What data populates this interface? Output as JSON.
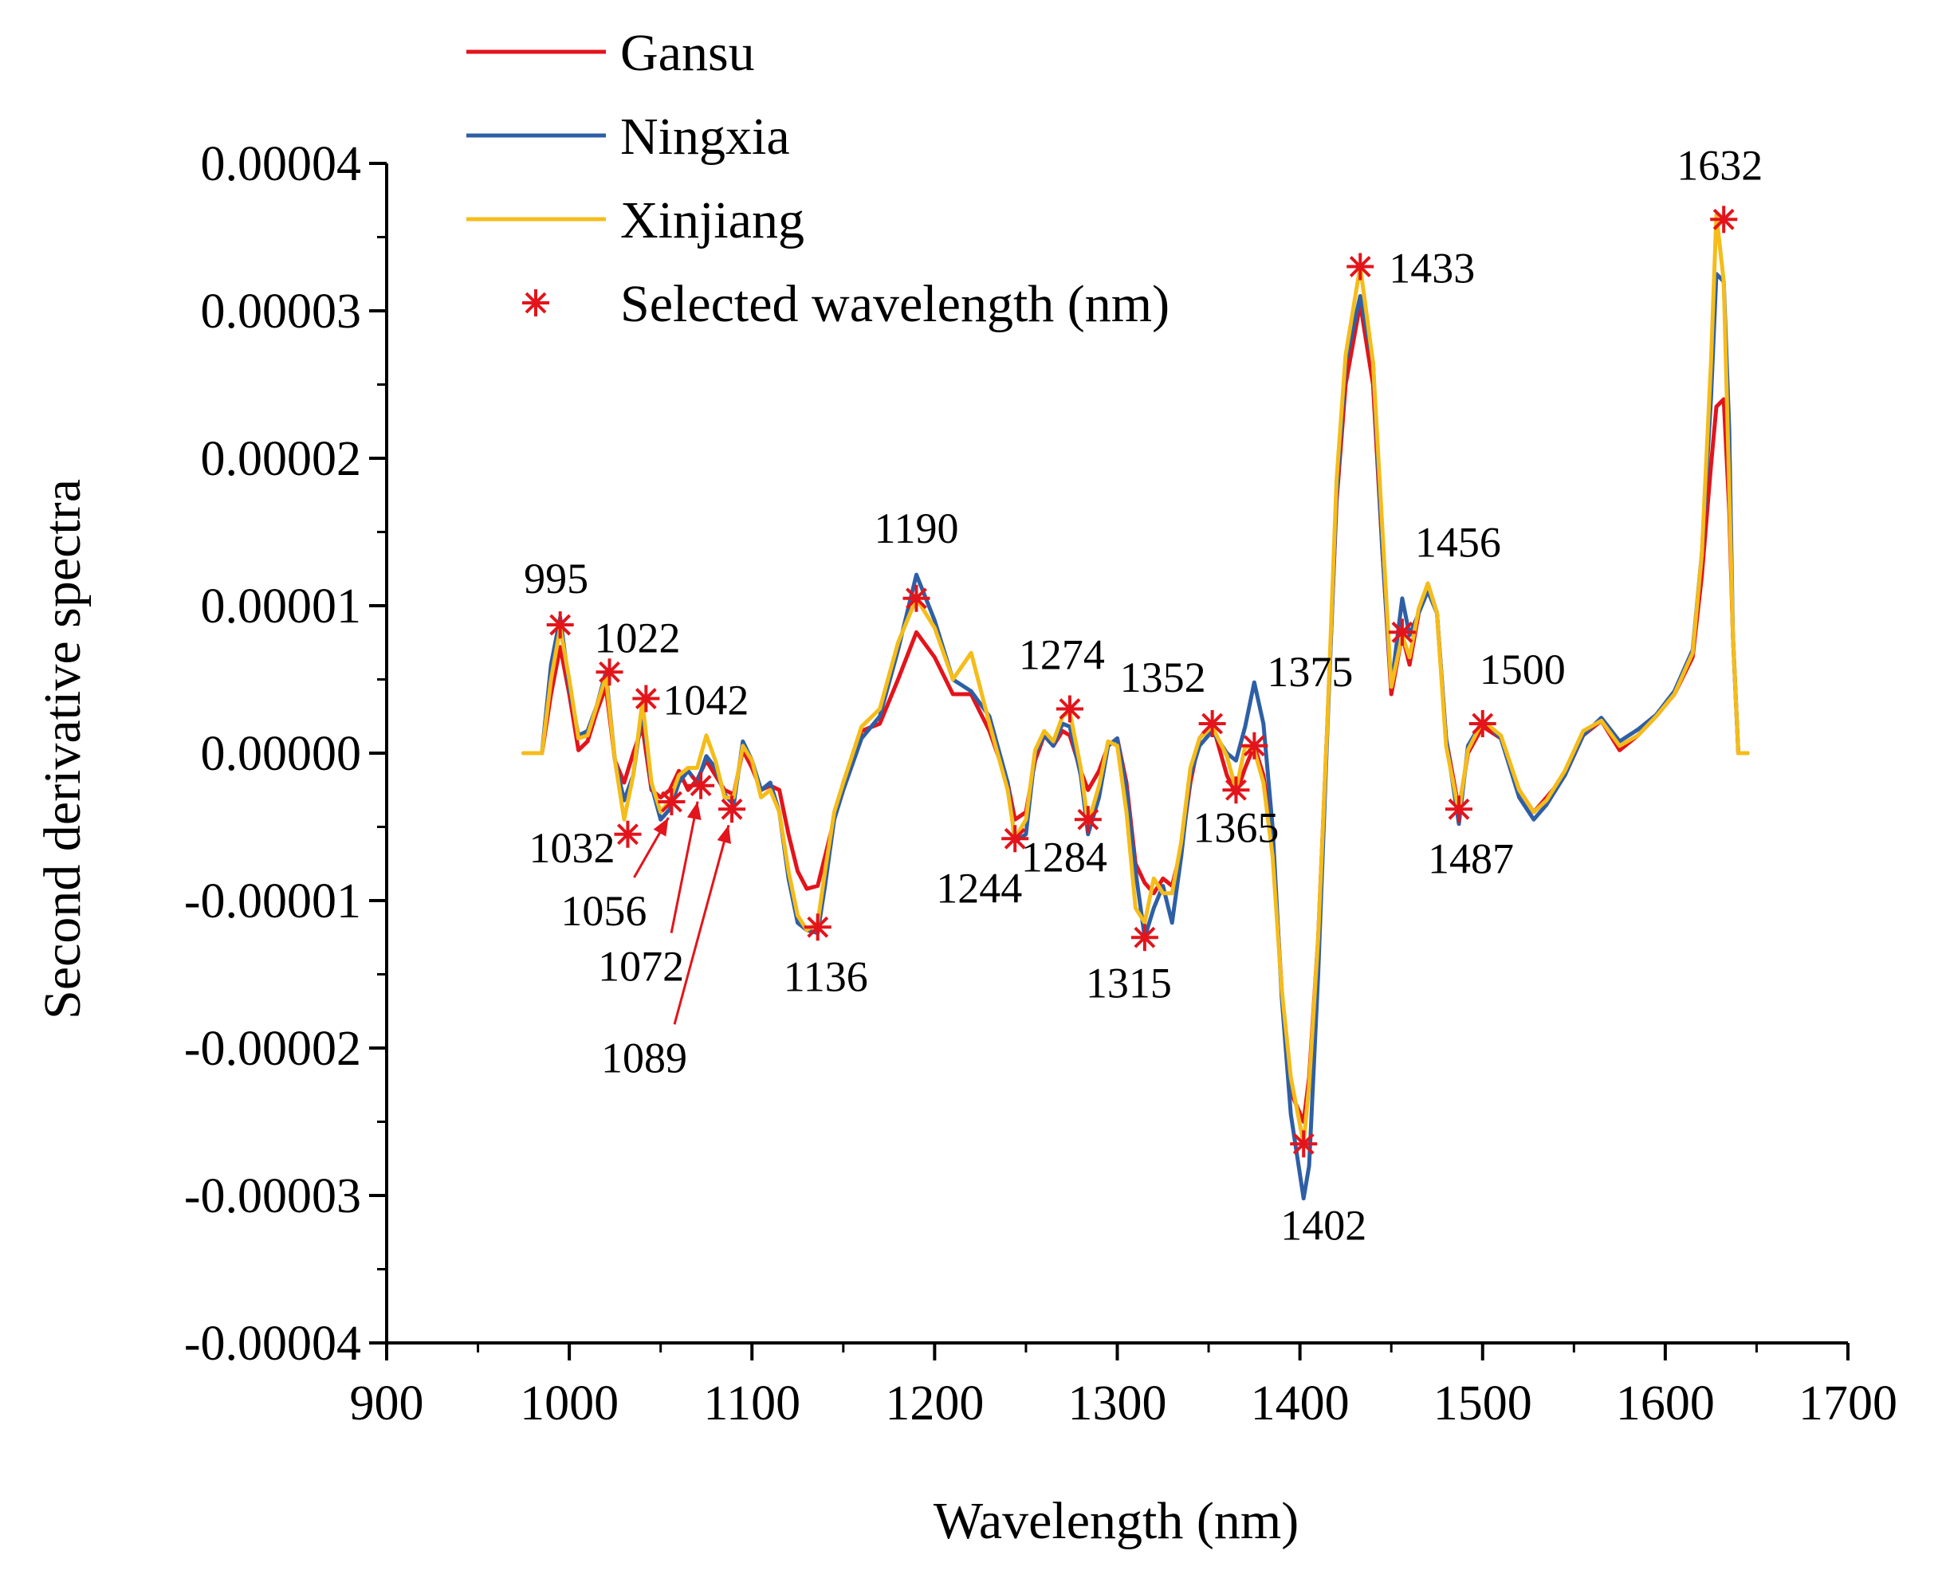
{
  "chart_data": {
    "type": "line",
    "xlabel": "Wavelength (nm)",
    "ylabel": "Second derivative spectra",
    "xlim": [
      900,
      1700
    ],
    "ylim": [
      -4e-05,
      4e-05
    ],
    "xticks": [
      900,
      1000,
      1100,
      1200,
      1300,
      1400,
      1500,
      1600,
      1700
    ],
    "xtick_labels": [
      "900",
      "1000",
      "1100",
      "1200",
      "1300",
      "1400",
      "1500",
      "1600",
      "1700"
    ],
    "yticks": [
      -4e-05,
      -3e-05,
      -2e-05,
      -1e-05,
      0,
      1e-05,
      2e-05,
      3e-05,
      4e-05
    ],
    "ytick_labels": [
      "-0.00004",
      "-0.00003",
      "-0.00002",
      "-0.00001",
      "0.00000",
      "0.00001",
      "0.00002",
      "0.00003",
      "0.00004"
    ],
    "legend_position": "top-left",
    "series": [
      {
        "name": "Gansu",
        "color": "#e3141b",
        "x": [
          975,
          985,
          990,
          995,
          1000,
          1005,
          1010,
          1015,
          1020,
          1025,
          1030,
          1035,
          1040,
          1045,
          1050,
          1055,
          1060,
          1065,
          1070,
          1075,
          1080,
          1085,
          1090,
          1095,
          1100,
          1105,
          1110,
          1115,
          1120,
          1125,
          1130,
          1136,
          1140,
          1145,
          1150,
          1160,
          1170,
          1180,
          1190,
          1200,
          1210,
          1220,
          1230,
          1240,
          1244,
          1250,
          1255,
          1260,
          1265,
          1270,
          1274,
          1280,
          1284,
          1290,
          1295,
          1300,
          1305,
          1310,
          1315,
          1320,
          1325,
          1330,
          1335,
          1340,
          1345,
          1352,
          1360,
          1365,
          1370,
          1375,
          1380,
          1385,
          1390,
          1395,
          1402,
          1405,
          1410,
          1415,
          1420,
          1425,
          1433,
          1440,
          1445,
          1450,
          1456,
          1460,
          1465,
          1470,
          1475,
          1480,
          1487,
          1492,
          1500,
          1510,
          1520,
          1528,
          1535,
          1545,
          1555,
          1565,
          1575,
          1585,
          1595,
          1605,
          1615,
          1620,
          1625,
          1628,
          1632,
          1635,
          1637,
          1640,
          1645
        ],
        "y": [
          0,
          0,
          4e-06,
          7.2e-06,
          4e-06,
          2e-07,
          8e-07,
          2.8e-06,
          4.5e-06,
          -5e-07,
          -2e-06,
          0,
          1.8e-06,
          -2.5e-06,
          -3e-06,
          -2.5e-06,
          -1.2e-06,
          -2.5e-06,
          -1.8e-06,
          -5e-07,
          -1.5e-06,
          -2.5e-06,
          -2.8e-06,
          2e-07,
          -1e-06,
          -2.5e-06,
          -2.2e-06,
          -2.5e-06,
          -5.5e-06,
          -8e-06,
          -9.2e-06,
          -9e-06,
          -7e-06,
          -4.5e-06,
          -2e-06,
          1.5e-06,
          2e-06,
          5e-06,
          8.2e-06,
          6.5e-06,
          4e-06,
          4e-06,
          1.5e-06,
          -2e-06,
          -4.5e-06,
          -4e-06,
          -5e-07,
          1.2e-06,
          5e-07,
          1.5e-06,
          1.2e-06,
          -1.2e-06,
          -2.5e-06,
          -1.2e-06,
          5e-07,
          1e-06,
          -2e-06,
          -7.5e-06,
          -8.8e-06,
          -9.5e-06,
          -8.5e-06,
          -9e-06,
          -6.5e-06,
          -2e-06,
          1e-06,
          2e-06,
          -1.5e-06,
          -2.8e-06,
          -1e-06,
          5e-07,
          -1.5e-06,
          -6e-06,
          -1.6e-05,
          -2.3e-05,
          -2.5e-05,
          -2.2e-05,
          -1.25e-05,
          2e-06,
          1.7e-05,
          2.5e-05,
          3.05e-05,
          2.5e-05,
          1.4e-05,
          4e-06,
          8e-06,
          6e-06,
          9.5e-06,
          1.15e-05,
          9.5e-06,
          1e-06,
          -3.8e-06,
          0,
          1.8e-06,
          1e-06,
          -2.5e-06,
          -4e-06,
          -3e-06,
          -1.5e-06,
          1.2e-06,
          2.2e-06,
          2e-07,
          1.2e-06,
          2.5e-06,
          4e-06,
          6.5e-06,
          1.2e-05,
          1.95e-05,
          2.35e-05,
          2.4e-05,
          1.65e-05,
          8e-06,
          0,
          0
        ],
        "y_last_index_note": ""
      },
      {
        "name": "Ningxia",
        "color": "#2e5fa6",
        "x": [
          975,
          985,
          990,
          995,
          1000,
          1005,
          1010,
          1015,
          1020,
          1025,
          1030,
          1035,
          1040,
          1045,
          1050,
          1055,
          1060,
          1065,
          1070,
          1075,
          1080,
          1085,
          1090,
          1095,
          1100,
          1105,
          1110,
          1115,
          1120,
          1125,
          1130,
          1136,
          1140,
          1145,
          1150,
          1160,
          1170,
          1180,
          1190,
          1200,
          1210,
          1220,
          1230,
          1240,
          1244,
          1250,
          1255,
          1260,
          1265,
          1270,
          1274,
          1280,
          1284,
          1290,
          1295,
          1300,
          1305,
          1310,
          1315,
          1320,
          1325,
          1330,
          1335,
          1340,
          1345,
          1352,
          1360,
          1365,
          1370,
          1375,
          1380,
          1385,
          1390,
          1395,
          1402,
          1405,
          1410,
          1415,
          1420,
          1425,
          1433,
          1440,
          1445,
          1450,
          1456,
          1460,
          1465,
          1470,
          1475,
          1480,
          1487,
          1492,
          1500,
          1510,
          1520,
          1528,
          1535,
          1545,
          1555,
          1565,
          1575,
          1585,
          1595,
          1605,
          1615,
          1620,
          1625,
          1628,
          1632,
          1635,
          1637,
          1640,
          1645
        ],
        "y": [
          0,
          0,
          6e-06,
          9.2e-06,
          4.5e-06,
          1.2e-06,
          1.5e-06,
          3.2e-06,
          5.5e-06,
          -5e-07,
          -3.2e-06,
          -1.5e-06,
          3e-06,
          -2.2e-06,
          -4.5e-06,
          -3.8e-06,
          -2e-06,
          -1.2e-06,
          -2e-06,
          -2e-07,
          -1e-06,
          -2.8e-06,
          -3.5e-06,
          8e-07,
          -5e-07,
          -2.5e-06,
          -2e-06,
          -4e-06,
          -8.5e-06,
          -1.15e-05,
          -1.2e-05,
          -1.22e-05,
          -9e-06,
          -4.5e-06,
          -2.5e-06,
          1e-06,
          2.5e-06,
          7e-06,
          1.21e-05,
          9e-06,
          5e-06,
          4.2e-06,
          2.5e-06,
          -2e-06,
          -6e-06,
          -5.5e-06,
          0,
          1.2e-06,
          5e-07,
          2e-06,
          1.8e-06,
          -1.5e-06,
          -5.5e-06,
          -3e-06,
          5e-07,
          1e-06,
          -2.5e-06,
          -8e-06,
          -1.25e-05,
          -1.05e-05,
          -9e-06,
          -1.15e-05,
          -7e-06,
          -1.5e-06,
          5e-07,
          1.5e-06,
          0,
          -5e-07,
          1.8e-06,
          4.8e-06,
          2e-06,
          -5e-06,
          -1.65e-05,
          -2.45e-05,
          -3.02e-05,
          -2.8e-05,
          -1.5e-05,
          1.5e-06,
          1.75e-05,
          2.65e-05,
          3.1e-05,
          2.65e-05,
          1.4e-05,
          4.5e-06,
          1.05e-05,
          8e-06,
          9.5e-06,
          1.1e-05,
          9.5e-06,
          1e-06,
          -4.8e-06,
          5e-07,
          2.2e-06,
          1e-06,
          -3e-06,
          -4.5e-06,
          -3.5e-06,
          -1.5e-06,
          1.2e-06,
          2.4e-06,
          8e-07,
          1.6e-06,
          2.6e-06,
          4.2e-06,
          7e-06,
          1.35e-05,
          2.4e-05,
          3.25e-05,
          3.2e-05,
          2.2e-05,
          8e-06,
          0,
          0
        ]
      },
      {
        "name": "Xinjiang",
        "color": "#f5bc1a",
        "x": [
          975,
          985,
          990,
          995,
          1000,
          1005,
          1010,
          1015,
          1020,
          1025,
          1030,
          1035,
          1040,
          1045,
          1050,
          1055,
          1060,
          1065,
          1070,
          1075,
          1080,
          1085,
          1090,
          1095,
          1100,
          1105,
          1110,
          1115,
          1120,
          1125,
          1130,
          1136,
          1140,
          1145,
          1150,
          1160,
          1170,
          1180,
          1190,
          1200,
          1210,
          1220,
          1230,
          1240,
          1244,
          1250,
          1255,
          1260,
          1265,
          1270,
          1274,
          1280,
          1284,
          1290,
          1295,
          1300,
          1305,
          1310,
          1315,
          1320,
          1325,
          1330,
          1335,
          1340,
          1345,
          1352,
          1360,
          1365,
          1370,
          1375,
          1380,
          1385,
          1390,
          1395,
          1402,
          1405,
          1410,
          1415,
          1420,
          1425,
          1433,
          1440,
          1445,
          1450,
          1456,
          1460,
          1465,
          1470,
          1475,
          1480,
          1487,
          1492,
          1500,
          1510,
          1520,
          1528,
          1535,
          1545,
          1555,
          1565,
          1575,
          1585,
          1595,
          1605,
          1615,
          1620,
          1625,
          1628,
          1632,
          1635,
          1637,
          1640,
          1645
        ],
        "y": [
          0,
          0,
          5e-06,
          8.5e-06,
          5e-06,
          1e-06,
          1.2e-06,
          3.2e-06,
          5.2e-06,
          -5e-07,
          -4.5e-06,
          -1.5e-06,
          3.5e-06,
          -2e-06,
          -4e-06,
          -3.2e-06,
          -1.5e-06,
          -1e-06,
          -1e-06,
          1.2e-06,
          -5e-07,
          -3e-06,
          -3e-06,
          5e-07,
          -5e-07,
          -3e-06,
          -2.5e-06,
          -4e-06,
          -8e-06,
          -1.1e-05,
          -1.2e-05,
          -1.15e-05,
          -8e-06,
          -4e-06,
          -2e-06,
          1.8e-06,
          3e-06,
          7.5e-06,
          1.05e-05,
          8.5e-06,
          5e-06,
          6.8e-06,
          2e-06,
          -2.5e-06,
          -5.8e-06,
          -4.5e-06,
          2e-07,
          1.5e-06,
          8e-07,
          2.5e-06,
          2.8e-06,
          -1e-06,
          -4.8e-06,
          -2.2e-06,
          8e-07,
          5e-07,
          -4e-06,
          -1.05e-05,
          -1.15e-05,
          -8.5e-06,
          -9.5e-06,
          -9.5e-06,
          -6e-06,
          -1e-06,
          1e-06,
          1.8e-06,
          -2e-07,
          -2.5e-06,
          5e-07,
          2e-07,
          -2e-06,
          -7e-06,
          -1.6e-05,
          -2.2e-05,
          -2.65e-05,
          -2.25e-05,
          -1.25e-05,
          2e-06,
          1.85e-05,
          2.7e-05,
          3.3e-05,
          2.65e-05,
          1.55e-05,
          4.5e-06,
          8e-06,
          6.5e-06,
          9.8e-06,
          1.15e-05,
          9.5e-06,
          5e-07,
          -4e-06,
          2e-07,
          2.2e-06,
          1.2e-06,
          -2.5e-06,
          -4e-06,
          -3.2e-06,
          -1.2e-06,
          1.5e-06,
          2.2e-06,
          5e-07,
          1.2e-06,
          2.5e-06,
          4e-06,
          6.8e-06,
          1.35e-05,
          2.65e-05,
          3.65e-05,
          3.2e-05,
          1.8e-05,
          8e-06,
          0,
          0
        ]
      }
    ],
    "selected_wavelengths": {
      "name": "Selected wavelength (nm)",
      "color": "#e3141b",
      "points": [
        {
          "x": 995,
          "y": 8.7e-06,
          "label": "995"
        },
        {
          "x": 1022,
          "y": 5.5e-06,
          "label": "1022"
        },
        {
          "x": 1032,
          "y": -5.5e-06,
          "label": "1032"
        },
        {
          "x": 1042,
          "y": 3.7e-06,
          "label": "1042"
        },
        {
          "x": 1056,
          "y": -3.3e-06,
          "label": "1056"
        },
        {
          "x": 1072,
          "y": -2.2e-06,
          "label": "1072"
        },
        {
          "x": 1089,
          "y": -3.8e-06,
          "label": "1089"
        },
        {
          "x": 1136,
          "y": -1.18e-05,
          "label": "1136"
        },
        {
          "x": 1190,
          "y": 1.05e-05,
          "label": "1190"
        },
        {
          "x": 1244,
          "y": -5.8e-06,
          "label": "1244"
        },
        {
          "x": 1274,
          "y": 3e-06,
          "label": "1274"
        },
        {
          "x": 1284,
          "y": -4.5e-06,
          "label": "1284"
        },
        {
          "x": 1315,
          "y": -1.25e-05,
          "label": "1315"
        },
        {
          "x": 1352,
          "y": 2e-06,
          "label": "1352"
        },
        {
          "x": 1365,
          "y": -2.5e-06,
          "label": "1365"
        },
        {
          "x": 1375,
          "y": 5e-07,
          "label": "1375"
        },
        {
          "x": 1402,
          "y": -2.65e-05,
          "label": "1402"
        },
        {
          "x": 1433,
          "y": 3.3e-05,
          "label": "1433"
        },
        {
          "x": 1456,
          "y": 8.2e-06,
          "label": "1456"
        },
        {
          "x": 1487,
          "y": -3.8e-06,
          "label": "1487"
        },
        {
          "x": 1500,
          "y": 2e-06,
          "label": "1500"
        },
        {
          "x": 1632,
          "y": 3.62e-05,
          "label": "1632"
        }
      ]
    }
  }
}
